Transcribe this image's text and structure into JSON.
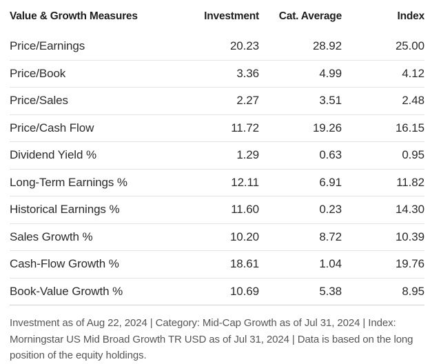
{
  "table": {
    "headers": [
      "Value & Growth Measures",
      "Investment",
      "Cat. Average",
      "Index"
    ],
    "rows": [
      {
        "measure": "Price/Earnings",
        "investment": "20.23",
        "cat_average": "28.92",
        "index": "25.00"
      },
      {
        "measure": "Price/Book",
        "investment": "3.36",
        "cat_average": "4.99",
        "index": "4.12"
      },
      {
        "measure": "Price/Sales",
        "investment": "2.27",
        "cat_average": "3.51",
        "index": "2.48"
      },
      {
        "measure": "Price/Cash Flow",
        "investment": "11.72",
        "cat_average": "19.26",
        "index": "16.15"
      },
      {
        "measure": "Dividend Yield %",
        "investment": "1.29",
        "cat_average": "0.63",
        "index": "0.95"
      },
      {
        "measure": "Long-Term Earnings %",
        "investment": "12.11",
        "cat_average": "6.91",
        "index": "11.82"
      },
      {
        "measure": "Historical Earnings %",
        "investment": "11.60",
        "cat_average": "0.23",
        "index": "14.30"
      },
      {
        "measure": "Sales Growth %",
        "investment": "10.20",
        "cat_average": "8.72",
        "index": "10.39"
      },
      {
        "measure": "Cash-Flow Growth %",
        "investment": "18.61",
        "cat_average": "1.04",
        "index": "19.76"
      },
      {
        "measure": "Book-Value Growth %",
        "investment": "10.69",
        "cat_average": "5.38",
        "index": "8.95"
      }
    ]
  },
  "footnote": "Investment as of Aug 22, 2024 | Category: Mid-Cap Growth as of Jul 31, 2024 | Index: Morningstar US Mid Broad Growth TR USD as of Jul 31, 2024 | Data is based on the long position of the equity holdings."
}
